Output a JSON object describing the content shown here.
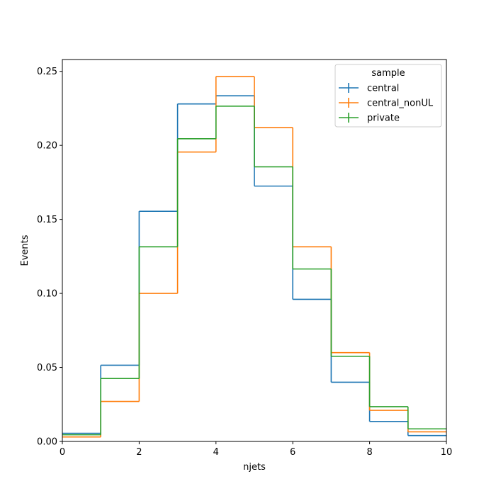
{
  "chart_data": {
    "type": "histogram-step",
    "title": "",
    "xlabel": "njets",
    "ylabel": "Events",
    "xlim": [
      0,
      10
    ],
    "ylim": [
      0.0,
      0.258
    ],
    "x_ticks": [
      0,
      2,
      4,
      6,
      8,
      10
    ],
    "y_ticks": [
      0.0,
      0.05,
      0.1,
      0.15,
      0.2,
      0.25
    ],
    "grid": false,
    "legend": {
      "title": "sample",
      "placement": "top-right"
    },
    "bin_edges": [
      0,
      1,
      2,
      3,
      4,
      5,
      6,
      7,
      8,
      9,
      10
    ],
    "series": [
      {
        "name": "central",
        "color": "#1f77b4",
        "values": [
          0.0055,
          0.0515,
          0.1555,
          0.228,
          0.2335,
          0.1725,
          0.096,
          0.04,
          0.0135,
          0.004
        ]
      },
      {
        "name": "central_nonUL",
        "color": "#ff7f0e",
        "values": [
          0.003,
          0.027,
          0.1,
          0.1955,
          0.2465,
          0.212,
          0.1315,
          0.06,
          0.021,
          0.0065
        ]
      },
      {
        "name": "private",
        "color": "#2ca02c",
        "values": [
          0.0045,
          0.0425,
          0.1315,
          0.2045,
          0.2265,
          0.1855,
          0.1165,
          0.0575,
          0.0235,
          0.0085
        ]
      }
    ]
  }
}
